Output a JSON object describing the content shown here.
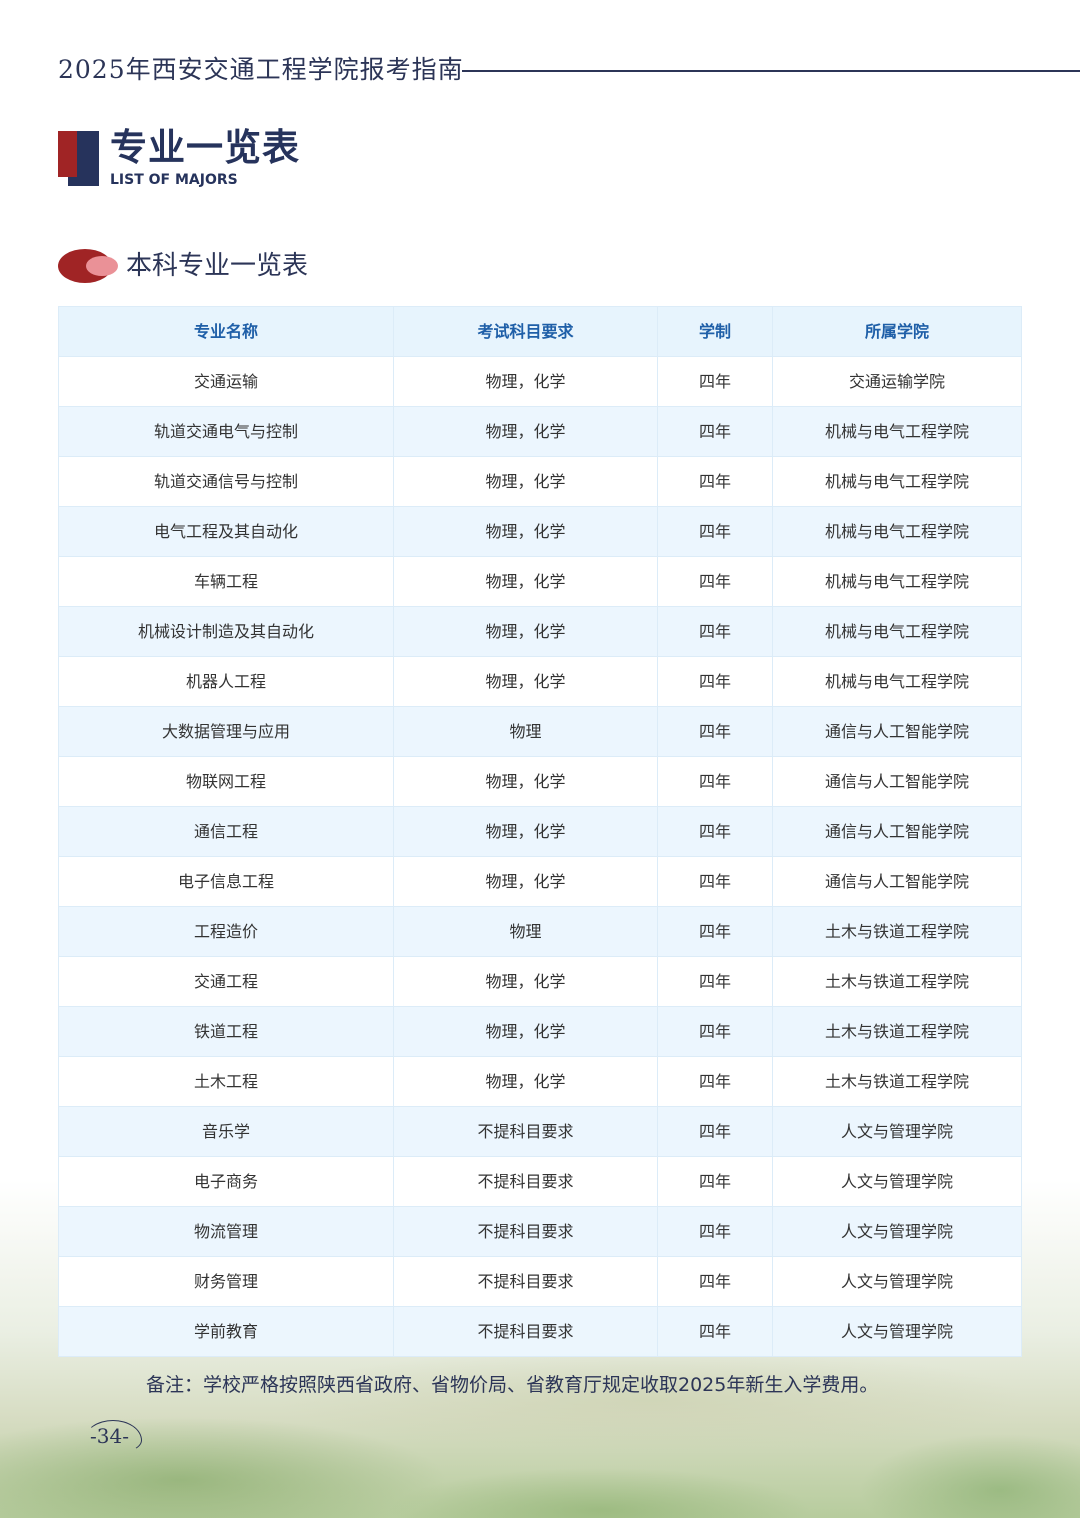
{
  "header": {
    "title": "2025年西安交通工程学院报考指南"
  },
  "section": {
    "title": "专业一览表",
    "subtitle": "LIST OF MAJORS"
  },
  "subsection": {
    "title": "本科专业一览表"
  },
  "table": {
    "columns": [
      "专业名称",
      "考试科目要求",
      "学制",
      "所属学院"
    ],
    "rows": [
      [
        "交通运输",
        "物理，化学",
        "四年",
        "交通运输学院"
      ],
      [
        "轨道交通电气与控制",
        "物理，化学",
        "四年",
        "机械与电气工程学院"
      ],
      [
        "轨道交通信号与控制",
        "物理，化学",
        "四年",
        "机械与电气工程学院"
      ],
      [
        "电气工程及其自动化",
        "物理，化学",
        "四年",
        "机械与电气工程学院"
      ],
      [
        "车辆工程",
        "物理，化学",
        "四年",
        "机械与电气工程学院"
      ],
      [
        "机械设计制造及其自动化",
        "物理，化学",
        "四年",
        "机械与电气工程学院"
      ],
      [
        "机器人工程",
        "物理，化学",
        "四年",
        "机械与电气工程学院"
      ],
      [
        "大数据管理与应用",
        "物理",
        "四年",
        "通信与人工智能学院"
      ],
      [
        "物联网工程",
        "物理，化学",
        "四年",
        "通信与人工智能学院"
      ],
      [
        "通信工程",
        "物理，化学",
        "四年",
        "通信与人工智能学院"
      ],
      [
        "电子信息工程",
        "物理，化学",
        "四年",
        "通信与人工智能学院"
      ],
      [
        "工程造价",
        "物理",
        "四年",
        "土木与铁道工程学院"
      ],
      [
        "交通工程",
        "物理，化学",
        "四年",
        "土木与铁道工程学院"
      ],
      [
        "铁道工程",
        "物理，化学",
        "四年",
        "土木与铁道工程学院"
      ],
      [
        "土木工程",
        "物理，化学",
        "四年",
        "土木与铁道工程学院"
      ],
      [
        "音乐学",
        "不提科目要求",
        "四年",
        "人文与管理学院"
      ],
      [
        "电子商务",
        "不提科目要求",
        "四年",
        "人文与管理学院"
      ],
      [
        "物流管理",
        "不提科目要求",
        "四年",
        "人文与管理学院"
      ],
      [
        "财务管理",
        "不提科目要求",
        "四年",
        "人文与管理学院"
      ],
      [
        "学前教育",
        "不提科目要求",
        "四年",
        "人文与管理学院"
      ]
    ]
  },
  "note": "备注：学校严格按照陕西省政府、省物价局、省教育厅规定收取2025年新生入学费用。",
  "page_number": "-34-",
  "colors": {
    "navy": "#26335c",
    "red": "#a02425",
    "header_text": "#1f5fa8",
    "row_alt": "#ebf6fe"
  }
}
